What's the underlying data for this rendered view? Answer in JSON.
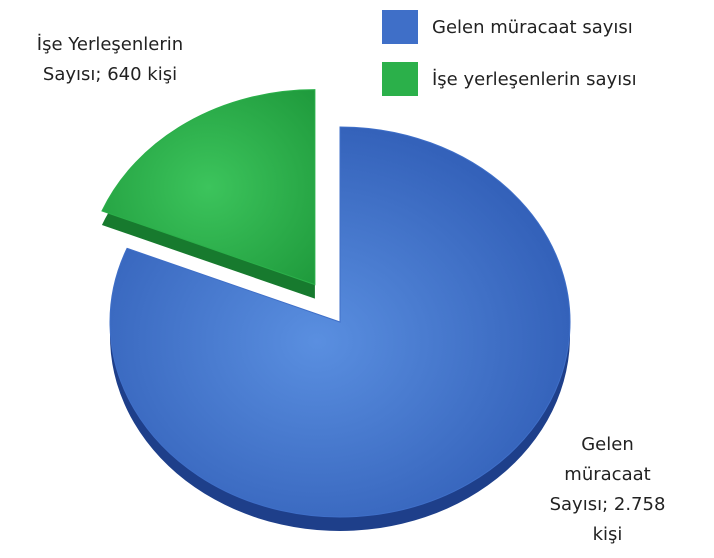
{
  "chart_data": {
    "type": "pie",
    "categories": [
      "Gelen müracaat sayısı",
      "İşe yerleşenlerin sayısı"
    ],
    "series": [
      {
        "name": "Gelen müracaat sayısı",
        "color": "#3f6fc8"
      },
      {
        "name": "İşe yerleşenlerin sayısı",
        "color": "#2bb04a"
      }
    ],
    "values": [
      2758,
      640
    ],
    "value_labels": [
      "Gelen müracaat Sayısı; 2.758 kişi",
      "İşe Yerleşenlerin Sayısı; 640 kişi"
    ],
    "explode": [
      0,
      1
    ],
    "legend": "upper right"
  }
}
